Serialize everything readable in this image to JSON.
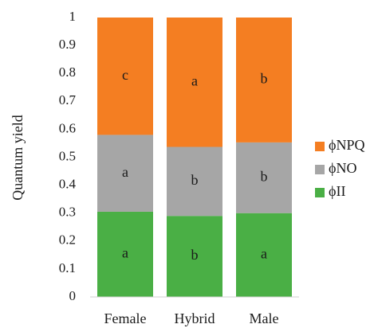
{
  "chart_data": {
    "type": "bar",
    "stacked": true,
    "title": "",
    "xlabel": "",
    "ylabel": "Quantum yield",
    "ylim": [
      0,
      1
    ],
    "yticks": [
      "0",
      "0.1",
      "0.2",
      "0.3",
      "0.4",
      "0.5",
      "0.6",
      "0.7",
      "0.8",
      "0.9",
      "1"
    ],
    "categories": [
      "Female",
      "Hybrid",
      "Male"
    ],
    "series": [
      {
        "name": "ϕII",
        "color": "#4aaf45",
        "values": [
          0.305,
          0.29,
          0.3
        ],
        "labels": [
          "a",
          "b",
          "a"
        ]
      },
      {
        "name": "ϕNO",
        "color": "#a6a6a6",
        "values": [
          0.275,
          0.247,
          0.253
        ],
        "labels": [
          "a",
          "b",
          "b"
        ]
      },
      {
        "name": "ϕNPQ",
        "color": "#f47e22",
        "values": [
          0.42,
          0.463,
          0.447
        ],
        "labels": [
          "c",
          "a",
          "b"
        ]
      }
    ],
    "legend": {
      "position": "right",
      "order": [
        "ϕNPQ",
        "ϕNO",
        "ϕII"
      ]
    },
    "grid": false
  }
}
